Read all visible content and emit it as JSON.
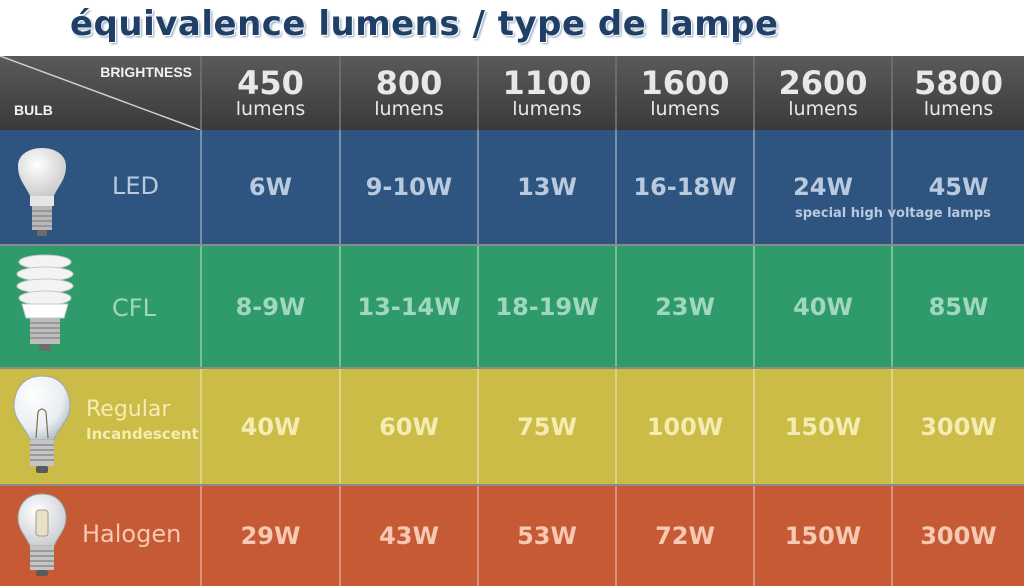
{
  "title": "équivalence lumens / type de lampe",
  "header": {
    "brightness_label": "BRIGHTNESS",
    "bulb_label": "BULB",
    "columns": [
      {
        "value": "450",
        "unit": "lumens"
      },
      {
        "value": "800",
        "unit": "lumens"
      },
      {
        "value": "1100",
        "unit": "lumens"
      },
      {
        "value": "1600",
        "unit": "lumens"
      },
      {
        "value": "2600",
        "unit": "lumens"
      },
      {
        "value": "5800",
        "unit": "lumens"
      }
    ]
  },
  "rows": [
    {
      "label": "LED",
      "sublabel": "",
      "icon": "led-bulb-icon",
      "color": "#2e5580",
      "text_color": "#b9c9de",
      "values": [
        "6W",
        "9-10W",
        "13W",
        "16-18W",
        "24W",
        "45W"
      ]
    },
    {
      "label": "CFL",
      "sublabel": "",
      "icon": "cfl-bulb-icon",
      "color": "#2f9a6a",
      "text_color": "#9fd8bf",
      "values": [
        "8-9W",
        "13-14W",
        "18-19W",
        "23W",
        "40W",
        "85W"
      ]
    },
    {
      "label": "Regular",
      "sublabel": "Incandescent",
      "icon": "incandescent-bulb-icon",
      "color": "#cbbb47",
      "text_color": "#f4ecb0",
      "values": [
        "40W",
        "60W",
        "75W",
        "100W",
        "150W",
        "300W"
      ]
    },
    {
      "label": "Halogen",
      "sublabel": "",
      "icon": "halogen-bulb-icon",
      "color": "#c55a35",
      "text_color": "#f6c9b3",
      "values": [
        "29W",
        "43W",
        "53W",
        "72W",
        "150W",
        "300W"
      ]
    }
  ],
  "note": "special high voltage lamps"
}
